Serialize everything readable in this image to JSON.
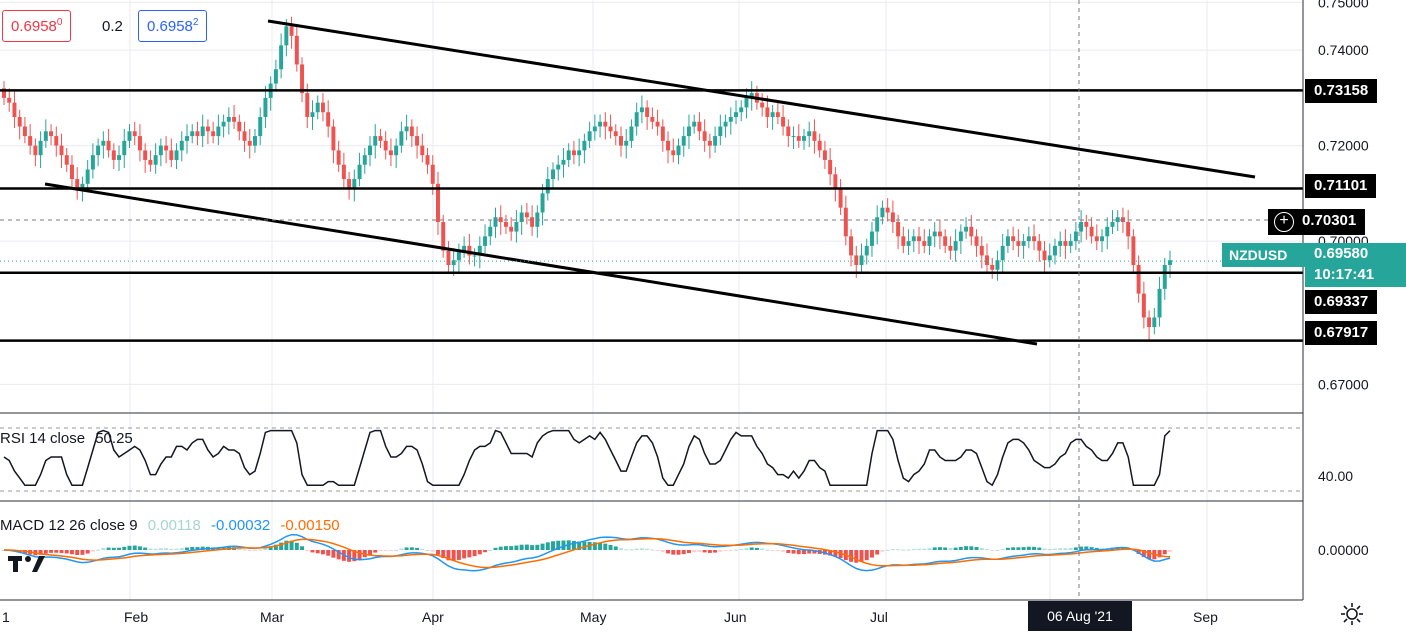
{
  "header": {
    "bid_price": "0.6958",
    "bid_price_suffix": "0",
    "spread": "0.2",
    "ask_price": "0.6958",
    "ask_price_suffix": "2",
    "bid_color": "#f23645",
    "ask_color": "#2962ff"
  },
  "price_axis": {
    "ticks": [
      "0.75000",
      "0.74000",
      "0.73158",
      "0.72000",
      "0.71101",
      "0.70301",
      "0.69580",
      "0.69337",
      "0.67917",
      "0.67000"
    ],
    "symbol_label": "NZDUSD",
    "symbol_time": "10:17:41",
    "symbol_color": "#26a69a"
  },
  "time_axis": {
    "labels": [
      "1",
      "Feb",
      "Mar",
      "Apr",
      "May",
      "Jun",
      "Jul",
      "06 Aug '21",
      "Sep"
    ]
  },
  "rsi": {
    "legend_name": "RSI 14 close",
    "legend_value": "50.25",
    "axis_label": "40.00"
  },
  "macd": {
    "legend_name": "MACD 12 26 close 9",
    "hist_value": "0.00118",
    "macd_value": "-0.00032",
    "signal_value": "-0.00150",
    "axis_label": "0.00000",
    "macd_color": "#2196f3",
    "signal_color": "#ff6d00"
  },
  "chart_data": {
    "type": "candlestick",
    "symbol": "NZDUSD",
    "timeframe": "daily",
    "ylim": [
      0.664,
      0.7505
    ],
    "ytick_values": [
      0.75,
      0.74,
      0.72,
      0.7,
      0.67
    ],
    "horizontal_levels": [
      0.73158,
      0.71101,
      0.69337,
      0.67917
    ],
    "current_price": 0.6958,
    "crosshair_price": 0.70301,
    "x_month_labels": [
      "1",
      "Feb",
      "Mar",
      "Apr",
      "May",
      "Jun",
      "Jul",
      "06 Aug '21",
      "Sep"
    ],
    "close_path": [
      0.73,
      0.729,
      0.726,
      0.724,
      0.722,
      0.72,
      0.718,
      0.721,
      0.723,
      0.722,
      0.72,
      0.718,
      0.716,
      0.713,
      0.711,
      0.712,
      0.715,
      0.718,
      0.72,
      0.721,
      0.719,
      0.717,
      0.718,
      0.721,
      0.723,
      0.722,
      0.719,
      0.717,
      0.716,
      0.718,
      0.72,
      0.719,
      0.717,
      0.719,
      0.721,
      0.722,
      0.723,
      0.722,
      0.724,
      0.723,
      0.722,
      0.724,
      0.725,
      0.726,
      0.725,
      0.723,
      0.721,
      0.72,
      0.722,
      0.726,
      0.73,
      0.733,
      0.736,
      0.741,
      0.745,
      0.743,
      0.737,
      0.731,
      0.726,
      0.727,
      0.729,
      0.727,
      0.724,
      0.719,
      0.716,
      0.713,
      0.711,
      0.713,
      0.716,
      0.718,
      0.72,
      0.722,
      0.721,
      0.719,
      0.718,
      0.72,
      0.723,
      0.724,
      0.722,
      0.72,
      0.718,
      0.716,
      0.712,
      0.704,
      0.698,
      0.695,
      0.696,
      0.698,
      0.699,
      0.697,
      0.697,
      0.699,
      0.701,
      0.703,
      0.705,
      0.704,
      0.703,
      0.702,
      0.704,
      0.706,
      0.705,
      0.703,
      0.706,
      0.71,
      0.713,
      0.715,
      0.716,
      0.717,
      0.719,
      0.718,
      0.719,
      0.721,
      0.723,
      0.724,
      0.725,
      0.724,
      0.723,
      0.722,
      0.72,
      0.721,
      0.724,
      0.727,
      0.728,
      0.726,
      0.725,
      0.724,
      0.721,
      0.719,
      0.718,
      0.72,
      0.722,
      0.724,
      0.725,
      0.723,
      0.721,
      0.72,
      0.722,
      0.724,
      0.725,
      0.726,
      0.727,
      0.728,
      0.73,
      0.731,
      0.729,
      0.728,
      0.726,
      0.727,
      0.726,
      0.724,
      0.722,
      0.722,
      0.721,
      0.722,
      0.723,
      0.721,
      0.719,
      0.717,
      0.714,
      0.711,
      0.707,
      0.701,
      0.697,
      0.695,
      0.697,
      0.699,
      0.702,
      0.705,
      0.707,
      0.706,
      0.704,
      0.701,
      0.699,
      0.7,
      0.701,
      0.7,
      0.699,
      0.701,
      0.702,
      0.701,
      0.699,
      0.698,
      0.7,
      0.702,
      0.703,
      0.701,
      0.699,
      0.697,
      0.695,
      0.694,
      0.696,
      0.699,
      0.701,
      0.7,
      0.699,
      0.7,
      0.701,
      0.7,
      0.698,
      0.696,
      0.697,
      0.699,
      0.7,
      0.699,
      0.7,
      0.702,
      0.704,
      0.703,
      0.701,
      0.7,
      0.701,
      0.703,
      0.704,
      0.705,
      0.704,
      0.701,
      0.695,
      0.689,
      0.684,
      0.682,
      0.684,
      0.69,
      0.695,
      0.696
    ]
  }
}
